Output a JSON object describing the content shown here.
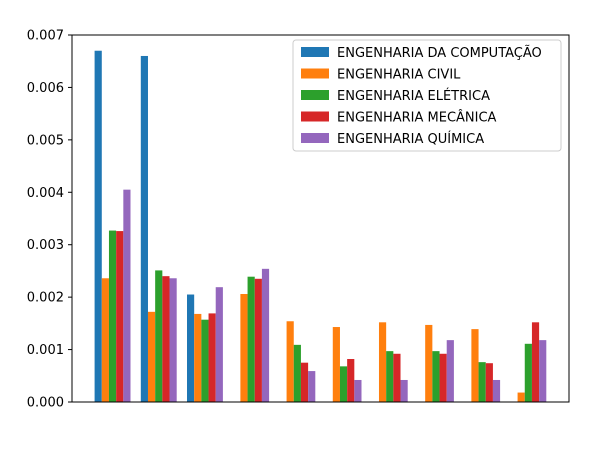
{
  "chart_data": {
    "type": "bar",
    "categories": [
      "",
      "",
      "",
      "",
      "",
      "",
      "",
      "",
      "",
      ""
    ],
    "series": [
      {
        "name": "ENGENHARIA DA COMPUTAÇÃO",
        "color": "#1f77b4",
        "values": [
          0.0067,
          0.0066,
          0.00205,
          0,
          0,
          0,
          0,
          0,
          0,
          0
        ]
      },
      {
        "name": "ENGENHARIA CIVIL",
        "color": "#ff7f0e",
        "values": [
          0.00236,
          0.00172,
          0.00168,
          0.00206,
          0.00154,
          0.00143,
          0.00152,
          0.00147,
          0.00139,
          0.00018
        ]
      },
      {
        "name": "ENGENHARIA ELÉTRICA",
        "color": "#2ca02c",
        "values": [
          0.00327,
          0.00251,
          0.00157,
          0.00239,
          0.00109,
          0.00068,
          0.00097,
          0.00097,
          0.00076,
          0.00111
        ]
      },
      {
        "name": "ENGENHARIA MECÂNICA",
        "color": "#d62728",
        "values": [
          0.00326,
          0.0024,
          0.00169,
          0.00235,
          0.00075,
          0.00082,
          0.00092,
          0.00092,
          0.00074,
          0.00152
        ]
      },
      {
        "name": "ENGENHARIA QUÍMICA",
        "color": "#9467bd",
        "values": [
          0.00405,
          0.00236,
          0.00219,
          0.00254,
          0.00059,
          0.00042,
          0.00042,
          0.00118,
          0.00042,
          0.00118
        ]
      }
    ],
    "ylim": [
      0,
      0.007
    ],
    "yticks": [
      "0.000",
      "0.001",
      "0.002",
      "0.003",
      "0.004",
      "0.005",
      "0.006",
      "0.007"
    ],
    "legend_position": "top-right",
    "grid": false
  }
}
